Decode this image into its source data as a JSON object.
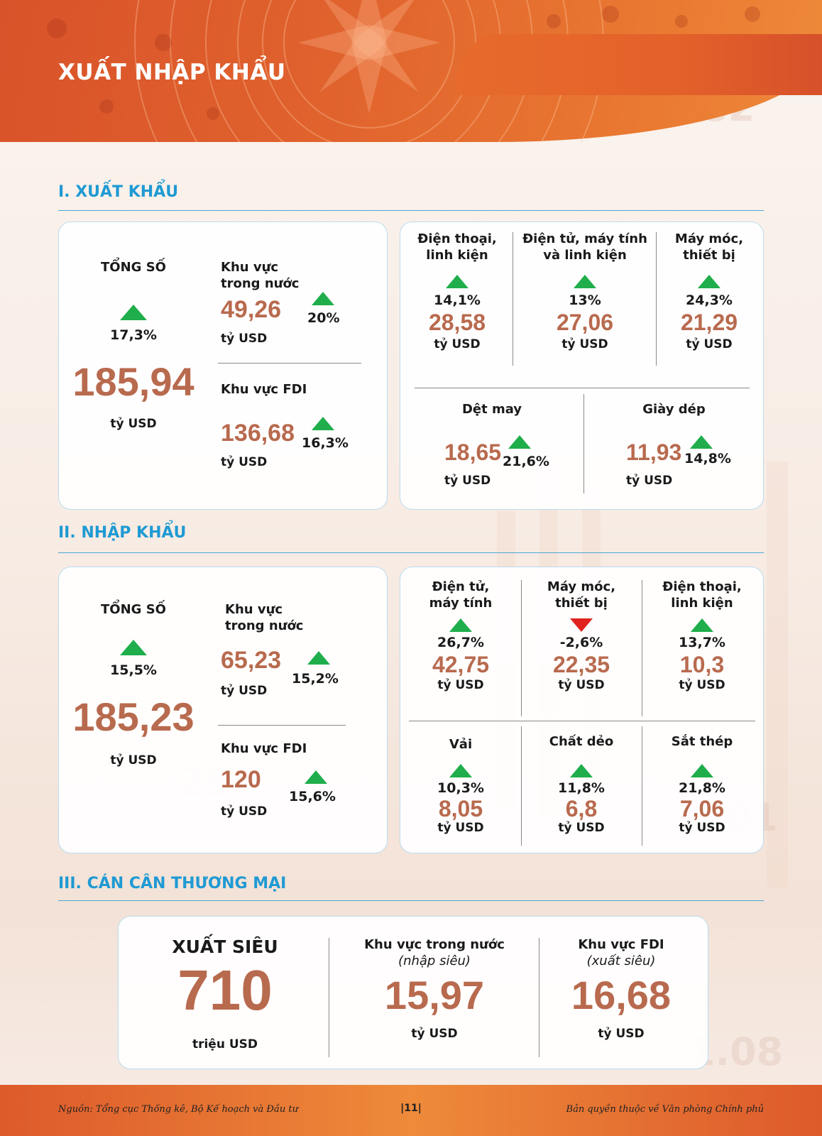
{
  "header": {
    "title": "XUẤT NHẬP KHẨU"
  },
  "export": {
    "section_title": "I. XUẤT KHẨU",
    "total": {
      "label": "TỔNG SỐ",
      "pct": "17,3%",
      "value": "185,94",
      "unit": "tỷ USD"
    },
    "domestic": {
      "label_line1": "Khu vực",
      "label_line2": "trong nước",
      "value": "49,26",
      "pct": "20%",
      "unit": "tỷ USD"
    },
    "fdi": {
      "label": "Khu vực FDI",
      "value": "136,68",
      "pct": "16,3%",
      "unit": "tỷ USD"
    },
    "items": [
      {
        "line1": "Điện thoại,",
        "line2": "linh kiện",
        "pct": "14,1%",
        "value": "28,58",
        "unit": "tỷ USD",
        "trend": "up"
      },
      {
        "line1": "Điện tử, máy tính",
        "line2": "và linh kiện",
        "pct": "13%",
        "value": "27,06",
        "unit": "tỷ USD",
        "trend": "up"
      },
      {
        "line1": "Máy móc,",
        "line2": "thiết bị",
        "pct": "24,3%",
        "value": "21,29",
        "unit": "tỷ USD",
        "trend": "up"
      },
      {
        "line1": "Dệt may",
        "pct": "21,6%",
        "value": "18,65",
        "unit": "tỷ USD",
        "trend": "up"
      },
      {
        "line1": "Giày dép",
        "pct": "14,8%",
        "value": "11,93",
        "unit": "tỷ USD",
        "trend": "up"
      }
    ]
  },
  "import": {
    "section_title": "II. NHẬP KHẨU",
    "total": {
      "label": "TỔNG SỐ",
      "pct": "15,5%",
      "value": "185,23",
      "unit": "tỷ USD"
    },
    "domestic": {
      "label_line1": "Khu vực",
      "label_line2": "trong nước",
      "value": "65,23",
      "pct": "15,2%",
      "unit": "tỷ USD"
    },
    "fdi": {
      "label": "Khu vực FDI",
      "value": "120",
      "pct": "15,6%",
      "unit": "tỷ USD"
    },
    "items": [
      {
        "line1": "Điện tử,",
        "line2": "máy tính",
        "pct": "26,7%",
        "value": "42,75",
        "unit": "tỷ USD",
        "trend": "up"
      },
      {
        "line1": "Máy móc,",
        "line2": "thiết bị",
        "pct": "-2,6%",
        "value": "22,35",
        "unit": "tỷ USD",
        "trend": "down"
      },
      {
        "line1": "Điện thoại,",
        "line2": "linh kiện",
        "pct": "13,7%",
        "value": "10,3",
        "unit": "tỷ USD",
        "trend": "up"
      },
      {
        "line1": "Vải",
        "pct": "10,3%",
        "value": "8,05",
        "unit": "tỷ USD",
        "trend": "up"
      },
      {
        "line1": "Chất dẻo",
        "pct": "11,8%",
        "value": "6,8",
        "unit": "tỷ USD",
        "trend": "up"
      },
      {
        "line1": "Sắt thép",
        "pct": "21,8%",
        "value": "7,06",
        "unit": "tỷ USD",
        "trend": "up"
      }
    ]
  },
  "balance": {
    "section_title": "III. CÁN CÂN THƯƠNG MẠI",
    "surplus": {
      "label": "XUẤT SIÊU",
      "value": "710",
      "unit": "triệu USD"
    },
    "domestic": {
      "label": "Khu vực trong nước",
      "note": "(nhập siêu)",
      "value": "15,97",
      "unit": "tỷ USD"
    },
    "fdi": {
      "label": "Khu vực FDI",
      "note": "(xuất siêu)",
      "value": "16,68",
      "unit": "tỷ USD"
    }
  },
  "footer": {
    "source": "Nguồn: Tổng cục Thống kê, Bộ Kế hoạch và Đầu tư",
    "page": "|11|",
    "copyright": "Bản quyền thuộc về Văn phòng Chính phủ"
  },
  "colors": {
    "accent_orange": "#e0622d",
    "section_blue": "#1f9ad3",
    "value_brown": "#b86a4e",
    "trend_up": "#1fae4b",
    "trend_down": "#e0231e"
  }
}
